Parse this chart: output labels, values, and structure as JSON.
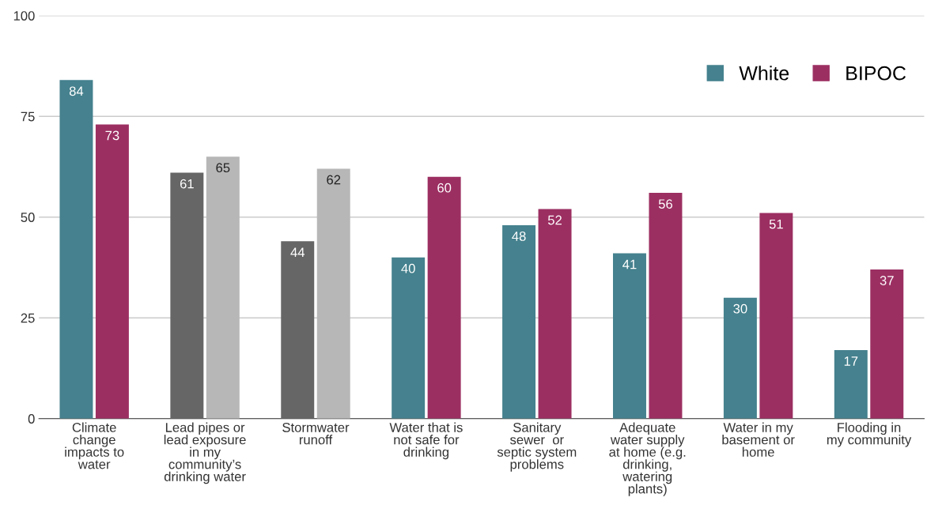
{
  "chart_data": {
    "type": "bar",
    "categories": [
      "Climate\nchange\nimpacts to\nwater",
      "Lead pipes or\nlead exposure\nin my\ncommunity’s\ndrinking water",
      "Stormwater\nrunoff",
      "Water that is\nnot safe for\ndrinking",
      "Sanitary\nsewer  or\nseptic system\nproblems",
      "Adequate\nwater supply\nat home (e.g.\ndrinking,\nwatering\nplants)",
      "Water in my\nbasement or\nhome",
      "Flooding in\nmy community"
    ],
    "series": [
      {
        "name": "White",
        "color": "#45818e",
        "colors": [
          "#45818e",
          "#666666",
          "#666666",
          "#45818e",
          "#45818e",
          "#45818e",
          "#45818e",
          "#45818e"
        ],
        "values": [
          84,
          61,
          44,
          40,
          48,
          41,
          30,
          17
        ]
      },
      {
        "name": "BIPOC",
        "color": "#9c2f62",
        "colors": [
          "#9c2f62",
          "#b7b7b7",
          "#b7b7b7",
          "#9c2f62",
          "#9c2f62",
          "#9c2f62",
          "#9c2f62",
          "#9c2f62"
        ],
        "values": [
          73,
          65,
          62,
          60,
          52,
          56,
          51,
          37
        ]
      }
    ],
    "ylim": [
      0,
      100
    ],
    "yticks": [
      0,
      25,
      50,
      75,
      100
    ],
    "grid": "y",
    "legend": "top right",
    "data_labels": true
  }
}
